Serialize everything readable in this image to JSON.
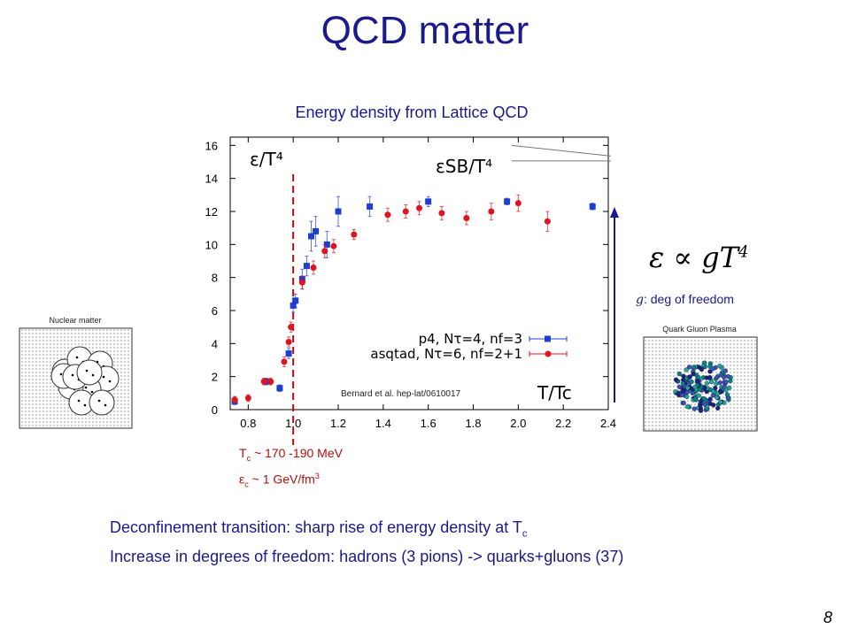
{
  "slide": {
    "title": "QCD matter",
    "page_number": "8"
  },
  "chart_data": {
    "type": "scatter",
    "title": "Energy density from Lattice QCD",
    "ylabel": "ε/T⁴",
    "xlabel": "T/Tc",
    "xlim": [
      0.72,
      2.4
    ],
    "ylim": [
      0,
      16.5
    ],
    "x_ticks": [
      "0.8",
      "1.0",
      "1.2",
      "1.4",
      "1.6",
      "1.8",
      "2.0",
      "2.2",
      "2.4"
    ],
    "x_tick_values": [
      0.8,
      1.0,
      1.2,
      1.4,
      1.6,
      1.8,
      2.0,
      2.2,
      2.4
    ],
    "y_ticks": [
      "0",
      "2",
      "4",
      "6",
      "8",
      "10",
      "12",
      "14",
      "16"
    ],
    "y_tick_values": [
      0,
      2,
      4,
      6,
      8,
      10,
      12,
      14,
      16
    ],
    "sb_limit": {
      "label": "εSB/T⁴",
      "value": 15.7
    },
    "tc_line_x": 1.0,
    "legend_position": "lower-right",
    "annotation": "Bernard et al. hep-lat/0610017",
    "series": [
      {
        "name": "p4, Nτ=4, nf=3",
        "color": "#1f3fd1",
        "marker": "square",
        "points": [
          {
            "x": 0.74,
            "y": 0.5,
            "err": 0.2
          },
          {
            "x": 0.88,
            "y": 1.7,
            "err": 0.2
          },
          {
            "x": 0.94,
            "y": 1.3,
            "err": 0.2
          },
          {
            "x": 0.98,
            "y": 3.4,
            "err": 0.3
          },
          {
            "x": 1.0,
            "y": 6.3,
            "err": 0.4
          },
          {
            "x": 1.01,
            "y": 6.6,
            "err": 0.4
          },
          {
            "x": 1.04,
            "y": 7.9,
            "err": 0.6
          },
          {
            "x": 1.06,
            "y": 8.7,
            "err": 0.6
          },
          {
            "x": 1.08,
            "y": 10.5,
            "err": 0.9
          },
          {
            "x": 1.1,
            "y": 10.8,
            "err": 0.9
          },
          {
            "x": 1.15,
            "y": 10.0,
            "err": 0.8
          },
          {
            "x": 1.2,
            "y": 12.0,
            "err": 0.9
          },
          {
            "x": 1.34,
            "y": 12.3,
            "err": 0.6
          },
          {
            "x": 1.6,
            "y": 12.6,
            "err": 0.3
          },
          {
            "x": 1.95,
            "y": 12.6,
            "err": 0.2
          },
          {
            "x": 2.33,
            "y": 12.3,
            "err": 0.2
          }
        ]
      },
      {
        "name": "asqtad, Nτ=6, nf=2+1",
        "color": "#e0141e",
        "marker": "circle",
        "points": [
          {
            "x": 0.74,
            "y": 0.6,
            "err": 0.2
          },
          {
            "x": 0.8,
            "y": 0.7,
            "err": 0.2
          },
          {
            "x": 0.87,
            "y": 1.7,
            "err": 0.2
          },
          {
            "x": 0.9,
            "y": 1.7,
            "err": 0.2
          },
          {
            "x": 0.96,
            "y": 2.9,
            "err": 0.3
          },
          {
            "x": 0.98,
            "y": 4.1,
            "err": 0.3
          },
          {
            "x": 0.99,
            "y": 5.0,
            "err": 0.3
          },
          {
            "x": 1.04,
            "y": 7.7,
            "err": 0.4
          },
          {
            "x": 1.09,
            "y": 8.6,
            "err": 0.4
          },
          {
            "x": 1.14,
            "y": 9.6,
            "err": 0.4
          },
          {
            "x": 1.18,
            "y": 9.9,
            "err": 0.4
          },
          {
            "x": 1.27,
            "y": 10.6,
            "err": 0.3
          },
          {
            "x": 1.42,
            "y": 11.8,
            "err": 0.4
          },
          {
            "x": 1.5,
            "y": 12.0,
            "err": 0.4
          },
          {
            "x": 1.56,
            "y": 12.2,
            "err": 0.4
          },
          {
            "x": 1.66,
            "y": 11.9,
            "err": 0.4
          },
          {
            "x": 1.77,
            "y": 11.6,
            "err": 0.4
          },
          {
            "x": 1.88,
            "y": 12.0,
            "err": 0.5
          },
          {
            "x": 2.0,
            "y": 12.5,
            "err": 0.5
          },
          {
            "x": 2.13,
            "y": 11.4,
            "err": 0.6
          }
        ]
      }
    ]
  },
  "tc_note": {
    "line1_symbol": "T",
    "line1_sub": "c",
    "line1_value": " ~ 170 -190 MeV",
    "line2_symbol": "ε",
    "line2_sub": "c",
    "line2_value": " ~ 1 GeV/fm",
    "line2_sup": "3"
  },
  "bottom": {
    "line1_text": "Deconfinement transition: sharp rise of energy density at T",
    "line1_sub": "c",
    "line2_text": "Increase in degrees of freedom: hadrons (3 pions) -> quarks+gluons (37)"
  },
  "right": {
    "formula_main": "ε ∝ gT",
    "formula_sup": "4",
    "g_symbol": "g",
    "g_text": ": deg of freedom",
    "qgp_label": "Quark Gluon Plasma"
  },
  "left": {
    "nuclear_label": "Nuclear matter"
  },
  "colors": {
    "title": "#1a1a8c",
    "tc_line": "#b01010",
    "arrow": "#1a1a8c",
    "qgp_particles": [
      "#1a237e",
      "#26a69a",
      "#3f51b5",
      "#00897b"
    ]
  }
}
